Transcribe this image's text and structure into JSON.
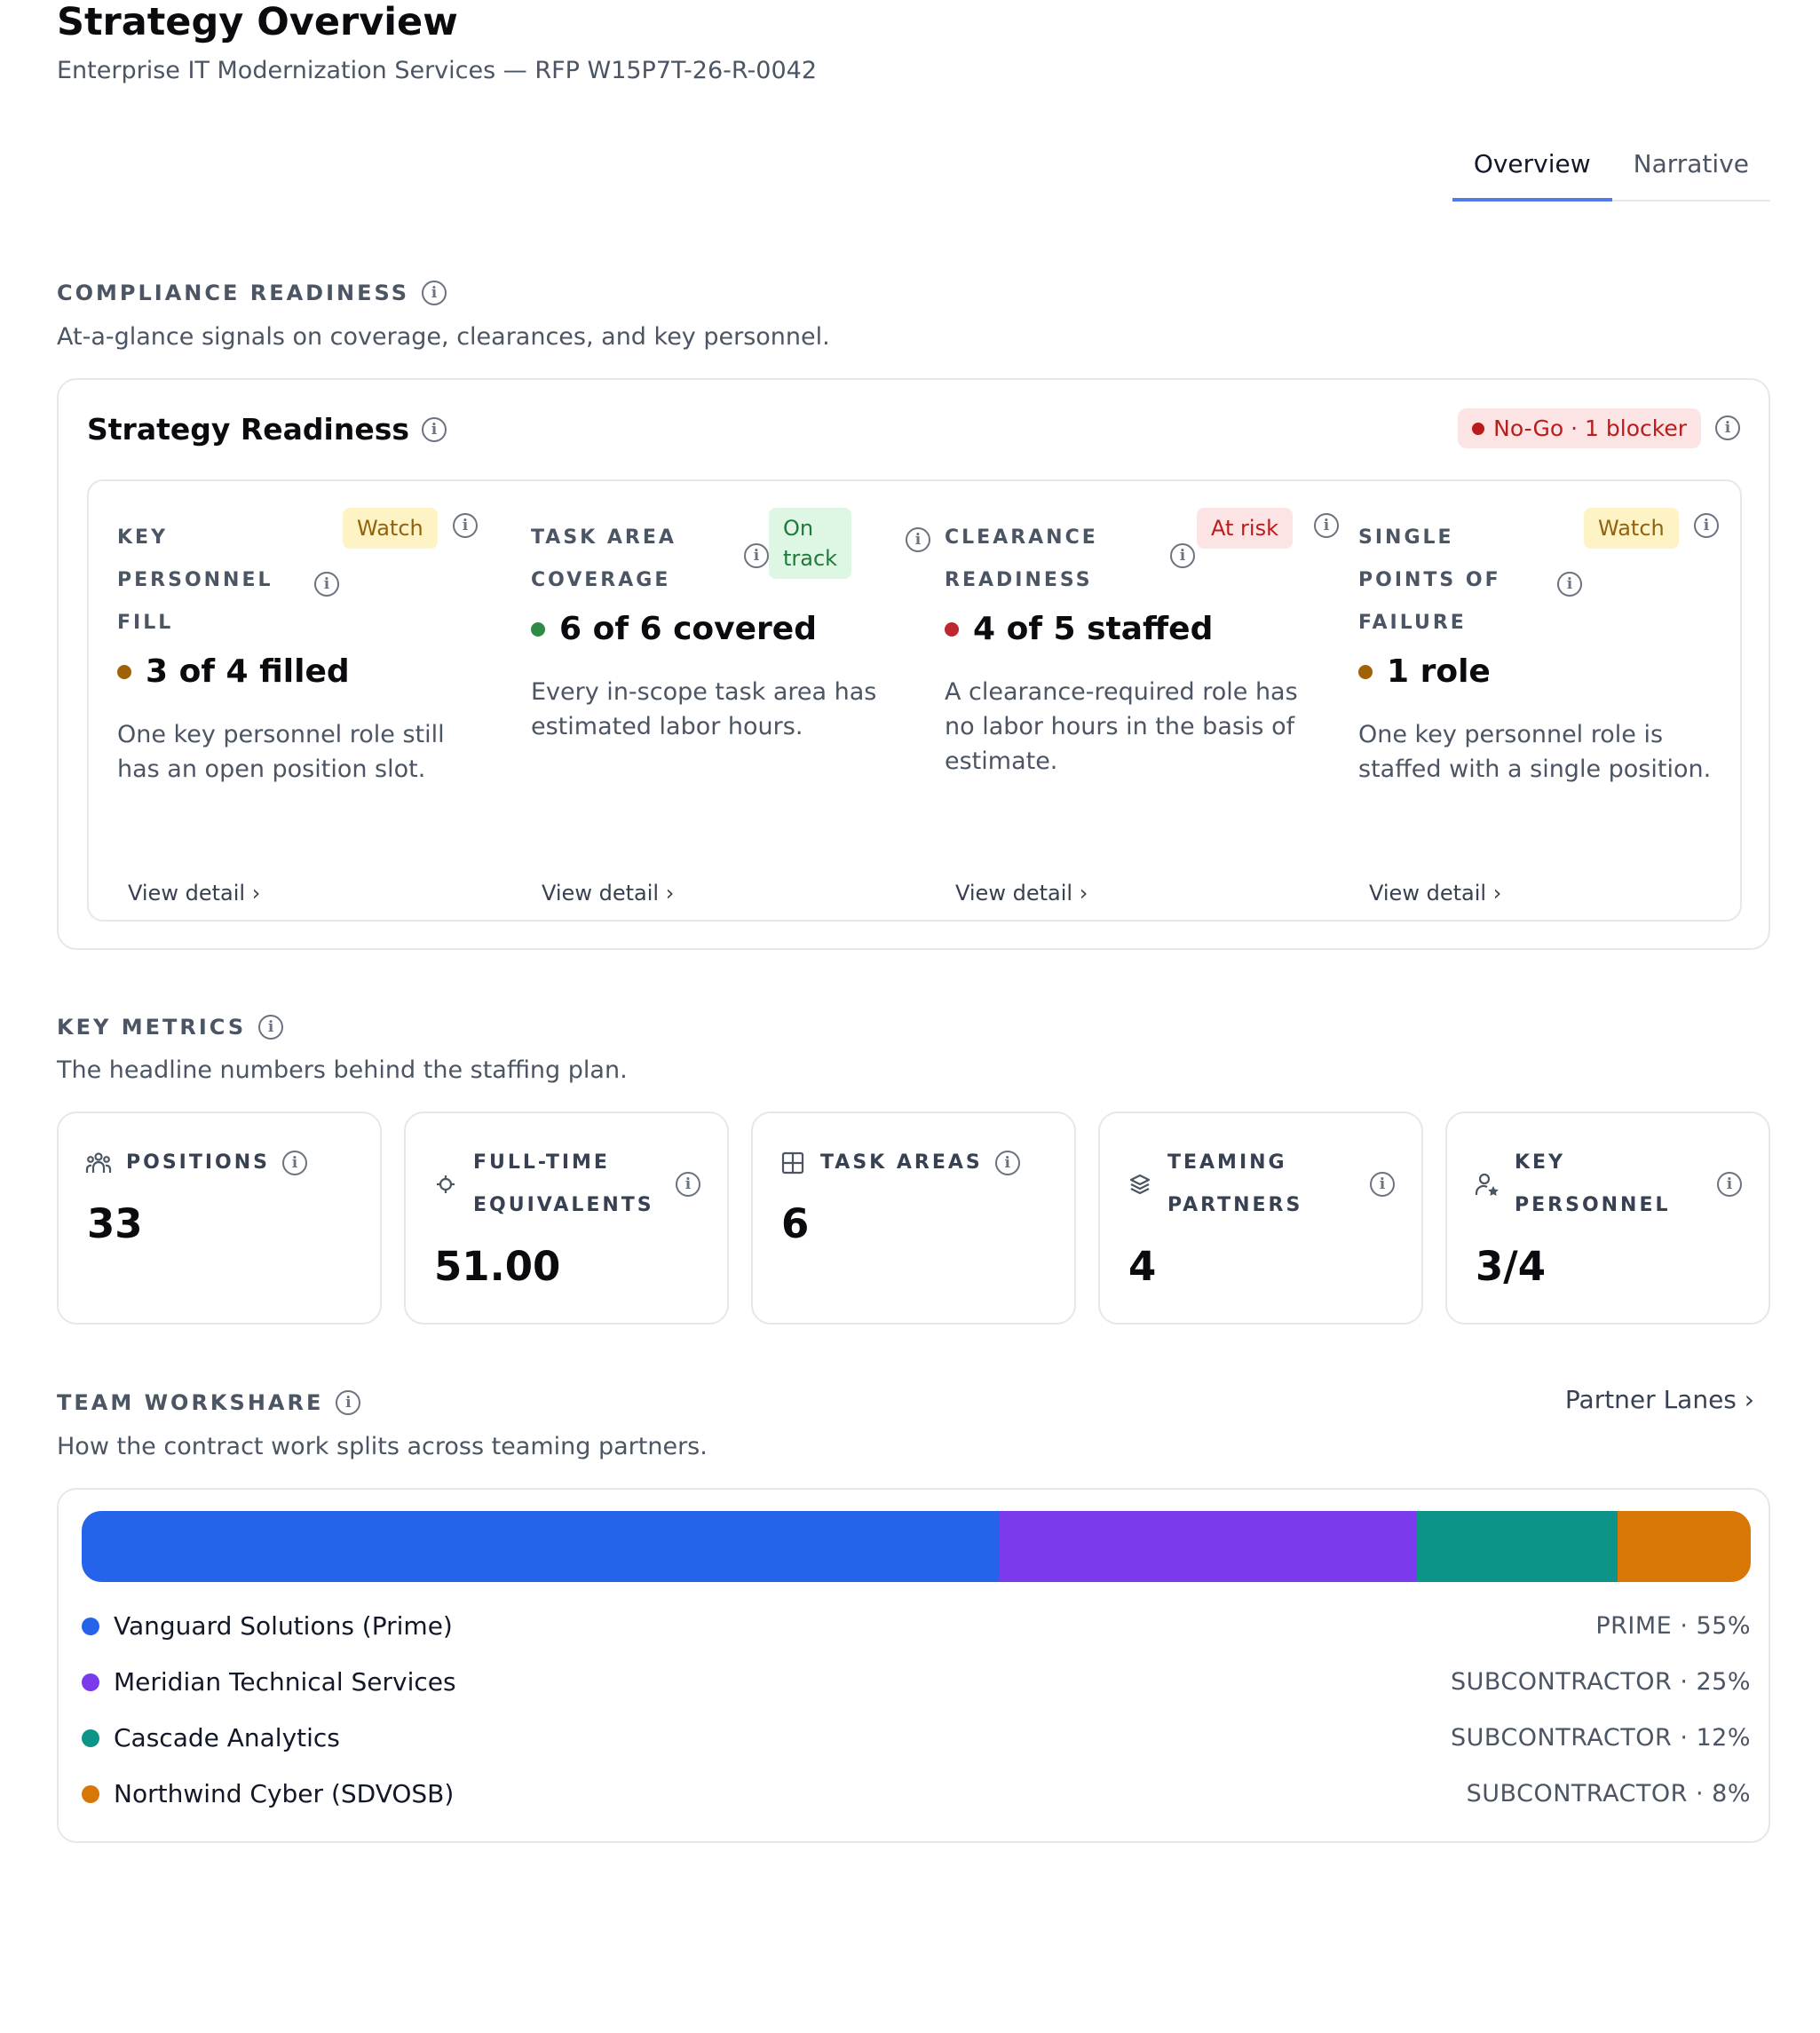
{
  "header": {
    "title": "Strategy Overview",
    "subtitle": "Enterprise IT Modernization Services — RFP W15P7T-26-R-0042"
  },
  "tabs": [
    {
      "label": "Overview",
      "active": true
    },
    {
      "label": "Narrative",
      "active": false
    }
  ],
  "compliance": {
    "label": "COMPLIANCE READINESS",
    "description": "At-a-glance signals on coverage, clearances, and key personnel.",
    "card_title": "Strategy Readiness",
    "status_badge": "No-Go · 1 blocker",
    "status_color": "#b91c1c",
    "columns": [
      {
        "label_lines": [
          "KEY",
          "PERSONNEL",
          "FILL"
        ],
        "badge": "Watch",
        "badge_type": "watch",
        "value": "3 of 4 filled",
        "dot_color": "#a16207",
        "description": "One key personnel role still has an open position slot.",
        "link": "View detail"
      },
      {
        "label_lines": [
          "TASK AREA",
          "COVERAGE"
        ],
        "badge": "On track",
        "badge_lines": [
          "On",
          "track"
        ],
        "badge_type": "ontrack",
        "value": "6 of 6 covered",
        "dot_color": "#2f8a46",
        "description": "Every in-scope task area has estimated labor hours.",
        "link": "View detail"
      },
      {
        "label_lines": [
          "CLEARANCE",
          "READINESS"
        ],
        "badge": "At risk",
        "badge_type": "atrisk",
        "value": "4 of 5 staffed",
        "dot_color": "#c0262d",
        "description": "A clearance-required role has no labor hours in the basis of estimate.",
        "link": "View detail"
      },
      {
        "label_lines": [
          "SINGLE",
          "POINTS OF",
          "FAILURE"
        ],
        "badge": "Watch",
        "badge_type": "watch",
        "value": "1 role",
        "dot_color": "#a16207",
        "description": "One key personnel role is staffed with a single position.",
        "link": "View detail"
      }
    ]
  },
  "key_metrics": {
    "label": "KEY METRICS",
    "description": "The headline numbers behind the staffing plan.",
    "items": [
      {
        "icon": "people-icon",
        "label_lines": [
          "POSITIONS"
        ],
        "value": "33"
      },
      {
        "icon": "target-icon",
        "label_lines": [
          "FULL-TIME",
          "EQUIVALENTS"
        ],
        "value": "51.00"
      },
      {
        "icon": "grid-icon",
        "label_lines": [
          "TASK AREAS"
        ],
        "value": "6"
      },
      {
        "icon": "layers-icon",
        "label_lines": [
          "TEAMING",
          "PARTNERS"
        ],
        "value": "4"
      },
      {
        "icon": "user-star-icon",
        "label_lines": [
          "KEY",
          "PERSONNEL"
        ],
        "value": "3/4"
      }
    ]
  },
  "workshare": {
    "label": "TEAM WORKSHARE",
    "description": "How the contract work splits across teaming partners.",
    "link": "Partner Lanes",
    "partners": [
      {
        "name": "Vanguard Solutions (Prime)",
        "role": "PRIME · 55%",
        "share": 55,
        "color": "#2563eb"
      },
      {
        "name": "Meridian Technical Services",
        "role": "SUBCONTRACTOR · 25%",
        "share": 25,
        "color": "#7c3aed"
      },
      {
        "name": "Cascade Analytics",
        "role": "SUBCONTRACTOR · 12%",
        "share": 12,
        "color": "#0d9488"
      },
      {
        "name": "Northwind Cyber (SDVOSB)",
        "role": "SUBCONTRACTOR · 8%",
        "share": 8,
        "color": "#d97706"
      }
    ]
  }
}
